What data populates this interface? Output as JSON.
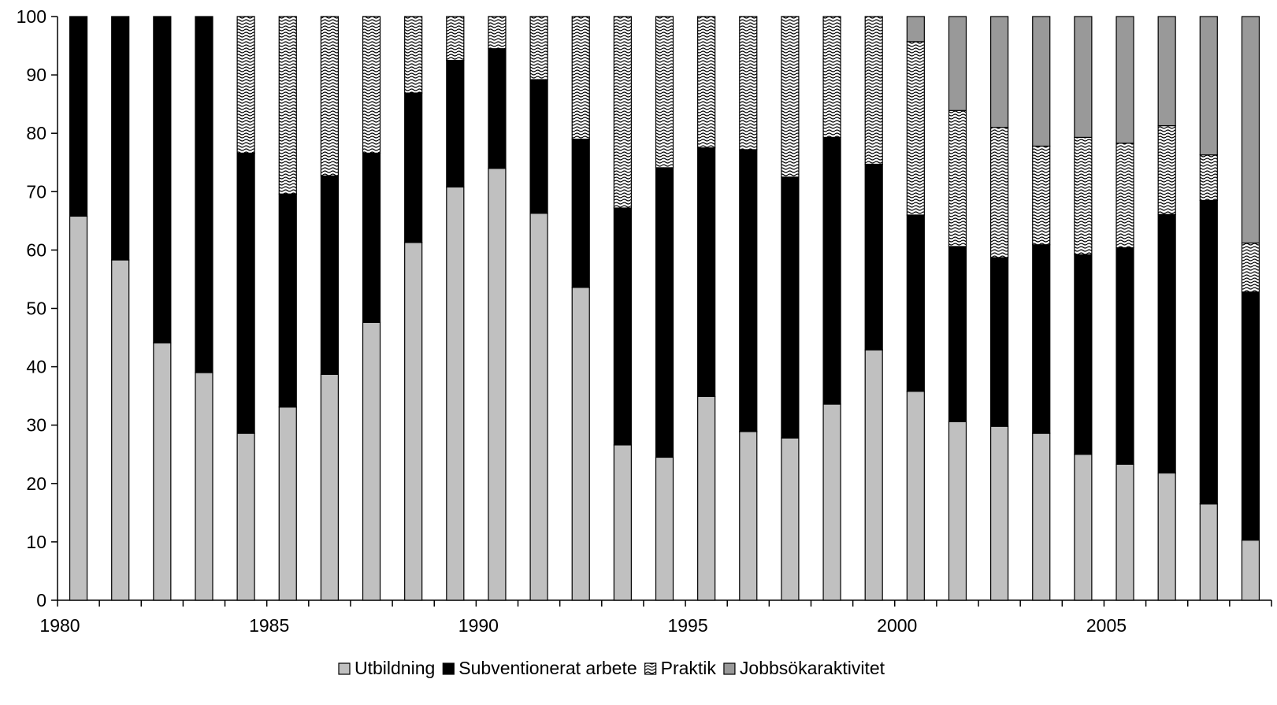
{
  "chart_data": {
    "type": "bar",
    "stacked": true,
    "stacked_percent": true,
    "years": [
      1980,
      1981,
      1982,
      1983,
      1984,
      1985,
      1986,
      1987,
      1988,
      1989,
      1990,
      1991,
      1992,
      1993,
      1994,
      1995,
      1996,
      1997,
      1998,
      1999,
      2000,
      2001,
      2002,
      2003,
      2004,
      2005,
      2006,
      2007,
      2008
    ],
    "x_tick_labels": [
      "1980",
      "1985",
      "1990",
      "1995",
      "2000",
      "2005"
    ],
    "ylim": [
      0,
      100
    ],
    "y_ticks": [
      0,
      10,
      20,
      30,
      40,
      50,
      60,
      70,
      80,
      90,
      100
    ],
    "grid": false,
    "legend_position": "bottom",
    "series": [
      {
        "name": "Utbildning",
        "color": "#c0c0c0",
        "pattern": "solid",
        "values": [
          65.8,
          58.3,
          44.1,
          39.0,
          28.6,
          33.1,
          38.7,
          47.6,
          61.3,
          70.8,
          74.0,
          66.3,
          53.6,
          26.6,
          24.5,
          34.9,
          28.9,
          27.8,
          33.6,
          42.9,
          35.8,
          30.6,
          29.8,
          28.6,
          25.0,
          23.3,
          21.8,
          16.5,
          10.3
        ]
      },
      {
        "name": "Subventionerat arbete",
        "color": "#000000",
        "pattern": "solid",
        "values": [
          34.2,
          41.7,
          55.9,
          61.0,
          48.0,
          36.5,
          34.0,
          29.0,
          25.6,
          21.7,
          20.5,
          22.9,
          25.4,
          40.6,
          49.6,
          42.6,
          48.3,
          44.7,
          45.7,
          31.8,
          30.2,
          30.0,
          28.9,
          32.3,
          34.2,
          37.1,
          44.3,
          52.0,
          42.5
        ]
      },
      {
        "name": "Praktik",
        "color": "#ffffff",
        "pattern": "wavy-hatch",
        "values": [
          0,
          0,
          0,
          0,
          23.4,
          30.4,
          27.3,
          23.4,
          13.1,
          7.5,
          5.5,
          10.8,
          21.0,
          32.8,
          25.9,
          22.5,
          22.8,
          27.5,
          20.7,
          25.3,
          29.7,
          23.3,
          22.3,
          16.9,
          20.1,
          17.9,
          15.2,
          7.8,
          8.4
        ]
      },
      {
        "name": "Jobbsökaraktivitet",
        "color": "#999999",
        "pattern": "solid",
        "values": [
          0,
          0,
          0,
          0,
          0,
          0,
          0,
          0,
          0,
          0,
          0,
          0,
          0,
          0,
          0,
          0,
          0,
          0,
          0,
          0,
          4.3,
          16.1,
          19.0,
          22.2,
          20.7,
          21.7,
          18.7,
          23.7,
          38.8
        ]
      }
    ]
  }
}
